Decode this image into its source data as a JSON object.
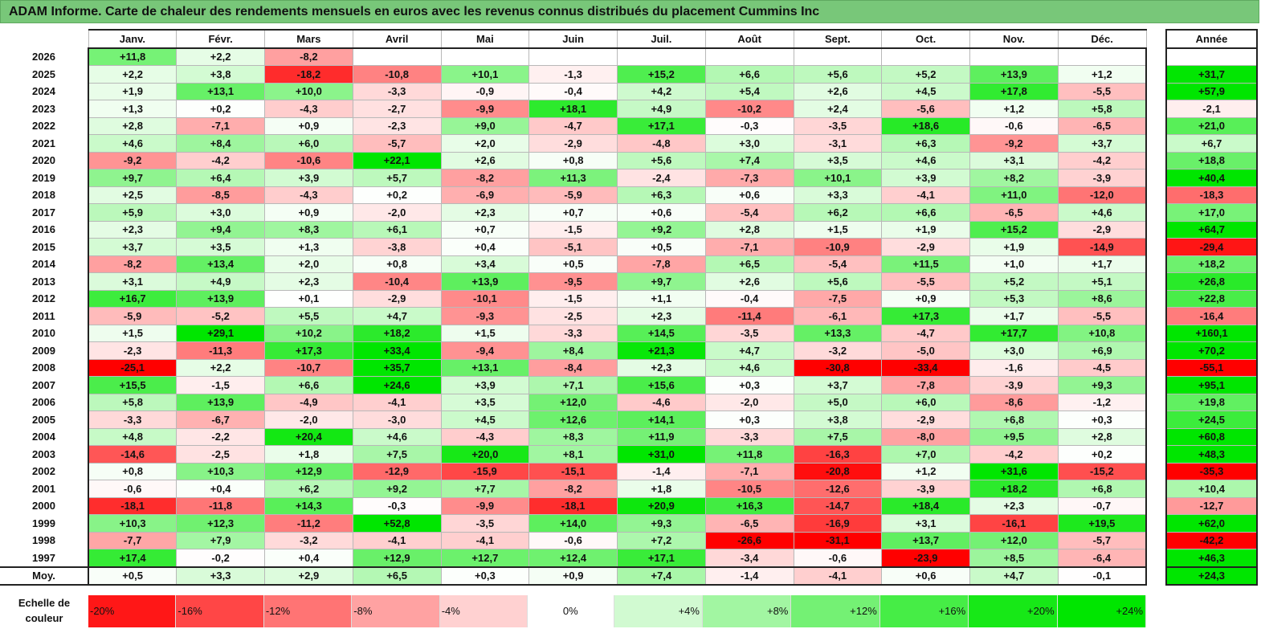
{
  "title": "ADAM Informe. Carte de chaleur des rendements mensuels en euros avec les revenus connus distribués du placement Cummins Inc",
  "chart_data": {
    "type": "heatmap",
    "title": "ADAM Informe. Carte de chaleur des rendements mensuels en euros avec les revenus connus distribués du placement Cummins Inc",
    "columns": [
      "Janv.",
      "Févr.",
      "Mars",
      "Avril",
      "Mai",
      "Juin",
      "Juil.",
      "Août",
      "Sept.",
      "Oct.",
      "Nov.",
      "Déc."
    ],
    "annual_label": "Année",
    "rows": [
      {
        "year": "2026",
        "values": [
          "+11,8",
          "+2,2",
          "-8,2",
          "",
          "",
          "",
          "",
          "",
          "",
          "",
          "",
          ""
        ],
        "annual": ""
      },
      {
        "year": "2025",
        "values": [
          "+2,2",
          "+3,8",
          "-18,2",
          "-10,8",
          "+10,1",
          "-1,3",
          "+15,2",
          "+6,6",
          "+5,6",
          "+5,2",
          "+13,9",
          "+1,2"
        ],
        "annual": "+31,7"
      },
      {
        "year": "2024",
        "values": [
          "+1,9",
          "+13,1",
          "+10,0",
          "-3,3",
          "-0,9",
          "-0,4",
          "+4,2",
          "+5,4",
          "+2,6",
          "+4,5",
          "+17,8",
          "-5,5"
        ],
        "annual": "+57,9"
      },
      {
        "year": "2023",
        "values": [
          "+1,3",
          "+0,2",
          "-4,3",
          "-2,7",
          "-9,9",
          "+18,1",
          "+4,9",
          "-10,2",
          "+2,4",
          "-5,6",
          "+1,2",
          "+5,8"
        ],
        "annual": "-2,1"
      },
      {
        "year": "2022",
        "values": [
          "+2,8",
          "-7,1",
          "+0,9",
          "-2,3",
          "+9,0",
          "-4,7",
          "+17,1",
          "-0,3",
          "-3,5",
          "+18,6",
          "-0,6",
          "-6,5"
        ],
        "annual": "+21,0"
      },
      {
        "year": "2021",
        "values": [
          "+4,6",
          "+8,4",
          "+6,0",
          "-5,7",
          "+2,0",
          "-2,9",
          "-4,8",
          "+3,0",
          "-3,1",
          "+6,3",
          "-9,2",
          "+3,7"
        ],
        "annual": "+6,7"
      },
      {
        "year": "2020",
        "values": [
          "-9,2",
          "-4,2",
          "-10,6",
          "+22,1",
          "+2,6",
          "+0,8",
          "+5,6",
          "+7,4",
          "+3,5",
          "+4,6",
          "+3,1",
          "-4,2"
        ],
        "annual": "+18,8"
      },
      {
        "year": "2019",
        "values": [
          "+9,7",
          "+6,4",
          "+3,9",
          "+5,7",
          "-8,2",
          "+11,3",
          "-2,4",
          "-7,3",
          "+10,1",
          "+3,9",
          "+8,2",
          "-3,9"
        ],
        "annual": "+40,4"
      },
      {
        "year": "2018",
        "values": [
          "+2,5",
          "-8,5",
          "-4,3",
          "+0,2",
          "-6,9",
          "-5,9",
          "+6,3",
          "+0,6",
          "+3,3",
          "-4,1",
          "+11,0",
          "-12,0"
        ],
        "annual": "-18,3"
      },
      {
        "year": "2017",
        "values": [
          "+5,9",
          "+3,0",
          "+0,9",
          "-2,0",
          "+2,3",
          "+0,7",
          "+0,6",
          "-5,4",
          "+6,2",
          "+6,6",
          "-6,5",
          "+4,6"
        ],
        "annual": "+17,0"
      },
      {
        "year": "2016",
        "values": [
          "+2,3",
          "+9,4",
          "+8,3",
          "+6,1",
          "+0,7",
          "-1,5",
          "+9,2",
          "+2,8",
          "+1,5",
          "+1,9",
          "+15,2",
          "-2,9"
        ],
        "annual": "+64,7"
      },
      {
        "year": "2015",
        "values": [
          "+3,7",
          "+3,5",
          "+1,3",
          "-3,8",
          "+0,4",
          "-5,1",
          "+0,5",
          "-7,1",
          "-10,9",
          "-2,9",
          "+1,9",
          "-14,9"
        ],
        "annual": "-29,4"
      },
      {
        "year": "2014",
        "values": [
          "-8,2",
          "+13,4",
          "+2,0",
          "+0,8",
          "+3,4",
          "+0,5",
          "-7,8",
          "+6,5",
          "-5,4",
          "+11,5",
          "+1,0",
          "+1,7"
        ],
        "annual": "+18,2"
      },
      {
        "year": "2013",
        "values": [
          "+3,1",
          "+4,9",
          "+2,3",
          "-10,4",
          "+13,9",
          "-9,5",
          "+9,7",
          "+2,6",
          "+5,6",
          "-5,5",
          "+5,2",
          "+5,1"
        ],
        "annual": "+26,8"
      },
      {
        "year": "2012",
        "values": [
          "+16,7",
          "+13,9",
          "+0,1",
          "-2,9",
          "-10,1",
          "-1,5",
          "+1,1",
          "-0,4",
          "-7,5",
          "+0,9",
          "+5,3",
          "+8,6"
        ],
        "annual": "+22,8"
      },
      {
        "year": "2011",
        "values": [
          "-5,9",
          "-5,2",
          "+5,5",
          "+4,7",
          "-9,3",
          "-2,5",
          "+2,3",
          "-11,4",
          "-6,1",
          "+17,3",
          "+1,7",
          "-5,5"
        ],
        "annual": "-16,4"
      },
      {
        "year": "2010",
        "values": [
          "+1,5",
          "+29,1",
          "+10,2",
          "+18,2",
          "+1,5",
          "-3,3",
          "+14,5",
          "-3,5",
          "+13,3",
          "-4,7",
          "+17,7",
          "+10,8"
        ],
        "annual": "+160,1"
      },
      {
        "year": "2009",
        "values": [
          "-2,3",
          "-11,3",
          "+17,3",
          "+33,4",
          "-9,4",
          "+8,4",
          "+21,3",
          "+4,7",
          "-3,2",
          "-5,0",
          "+3,0",
          "+6,9"
        ],
        "annual": "+70,2"
      },
      {
        "year": "2008",
        "values": [
          "-25,1",
          "+2,2",
          "-10,7",
          "+35,7",
          "+13,1",
          "-8,4",
          "+2,3",
          "+4,6",
          "-30,8",
          "-33,4",
          "-1,6",
          "-4,5"
        ],
        "annual": "-55,1"
      },
      {
        "year": "2007",
        "values": [
          "+15,5",
          "-1,5",
          "+6,6",
          "+24,6",
          "+3,9",
          "+7,1",
          "+15,6",
          "+0,3",
          "+3,7",
          "-7,8",
          "-3,9",
          "+9,3"
        ],
        "annual": "+95,1"
      },
      {
        "year": "2006",
        "values": [
          "+5,8",
          "+13,9",
          "-4,9",
          "-4,1",
          "+3,5",
          "+12,0",
          "-4,6",
          "-2,0",
          "+5,0",
          "+6,0",
          "-8,6",
          "-1,2"
        ],
        "annual": "+19,8"
      },
      {
        "year": "2005",
        "values": [
          "-3,3",
          "-6,7",
          "-2,0",
          "-3,0",
          "+4,5",
          "+12,6",
          "+14,1",
          "+0,3",
          "+3,8",
          "-2,9",
          "+6,8",
          "+0,3"
        ],
        "annual": "+24,5"
      },
      {
        "year": "2004",
        "values": [
          "+4,8",
          "-2,2",
          "+20,4",
          "+4,6",
          "-4,3",
          "+8,3",
          "+11,9",
          "-3,3",
          "+7,5",
          "-8,0",
          "+9,5",
          "+2,8"
        ],
        "annual": "+60,8"
      },
      {
        "year": "2003",
        "values": [
          "-14,6",
          "-2,5",
          "+1,8",
          "+7,5",
          "+20,0",
          "+8,1",
          "+31,0",
          "+11,8",
          "-16,3",
          "+7,0",
          "-4,2",
          "+0,2"
        ],
        "annual": "+48,3"
      },
      {
        "year": "2002",
        "values": [
          "+0,8",
          "+10,3",
          "+12,9",
          "-12,9",
          "-15,9",
          "-15,1",
          "-1,4",
          "-7,1",
          "-20,8",
          "+1,2",
          "+31,6",
          "-15,2"
        ],
        "annual": "-35,3"
      },
      {
        "year": "2001",
        "values": [
          "-0,6",
          "+0,4",
          "+6,2",
          "+9,2",
          "+7,7",
          "-8,2",
          "+1,8",
          "-10,5",
          "-12,6",
          "-3,9",
          "+18,2",
          "+6,8"
        ],
        "annual": "+10,4"
      },
      {
        "year": "2000",
        "values": [
          "-18,1",
          "-11,8",
          "+14,3",
          "-0,3",
          "-9,9",
          "-18,1",
          "+20,9",
          "+16,3",
          "-14,7",
          "+18,4",
          "+2,3",
          "-0,7"
        ],
        "annual": "-12,7"
      },
      {
        "year": "1999",
        "values": [
          "+10,3",
          "+12,3",
          "-11,2",
          "+52,8",
          "-3,5",
          "+14,0",
          "+9,3",
          "-6,5",
          "-16,9",
          "+3,1",
          "-16,1",
          "+19,5"
        ],
        "annual": "+62,0"
      },
      {
        "year": "1998",
        "values": [
          "-7,7",
          "+7,9",
          "-3,2",
          "-4,1",
          "-4,1",
          "-0,6",
          "+7,2",
          "-26,6",
          "-31,1",
          "+13,7",
          "+12,0",
          "-5,7"
        ],
        "annual": "-42,2"
      },
      {
        "year": "1997",
        "values": [
          "+17,4",
          "-0,2",
          "+0,4",
          "+12,9",
          "+12,7",
          "+12,4",
          "+17,1",
          "-3,4",
          "-0,6",
          "-23,9",
          "+8,5",
          "-6,4"
        ],
        "annual": "+46,3"
      }
    ],
    "average": {
      "label": "Moy.",
      "values": [
        "+0,5",
        "+3,3",
        "+2,9",
        "+6,5",
        "+0,3",
        "+0,9",
        "+7,4",
        "-1,4",
        "-4,1",
        "+0,6",
        "+4,7",
        "-0,1"
      ],
      "annual": "+24,3"
    },
    "scale_label": "Echelle de couleur",
    "scale": [
      {
        "label": "-20%",
        "value": -20
      },
      {
        "label": "-16%",
        "value": -16
      },
      {
        "label": "-12%",
        "value": -12
      },
      {
        "label": "-8%",
        "value": -8
      },
      {
        "label": "-4%",
        "value": -4
      },
      {
        "label": "0%",
        "value": 0
      },
      {
        "label": "+4%",
        "value": 4
      },
      {
        "label": "+8%",
        "value": 8
      },
      {
        "label": "+12%",
        "value": 12
      },
      {
        "label": "+16%",
        "value": 16
      },
      {
        "label": "+20%",
        "value": 20
      },
      {
        "label": "+24%",
        "value": 24
      }
    ],
    "colors": {
      "negative": "#ff0000",
      "neutral": "#ffffff",
      "positive": "#00e600"
    }
  }
}
